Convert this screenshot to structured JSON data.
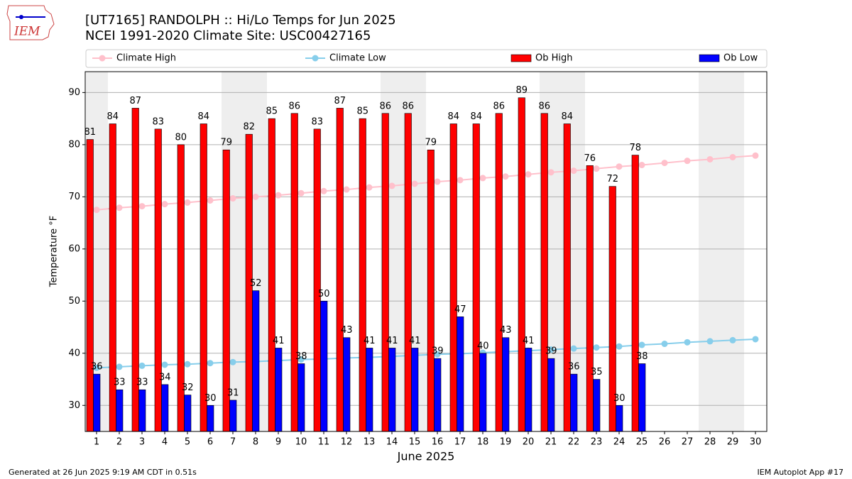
{
  "chart_data": {
    "type": "bar",
    "title": "[UT7165] RANDOLPH :: Hi/Lo Temps for Jun 2025",
    "subtitle": "NCEI 1991-2020 Climate Site: USC00427165",
    "logo_text": "IEM",
    "xlabel": "June 2025",
    "ylabel": "Temperature °F",
    "footer_left": "Generated at 26 Jun 2025 9:19 AM CDT in 0.51s",
    "footer_right": "IEM Autoplot App #17",
    "categories": [
      "1",
      "2",
      "3",
      "4",
      "5",
      "6",
      "7",
      "8",
      "9",
      "10",
      "11",
      "12",
      "13",
      "14",
      "15",
      "16",
      "17",
      "18",
      "19",
      "20",
      "21",
      "22",
      "23",
      "24",
      "25",
      "26",
      "27",
      "28",
      "29",
      "30"
    ],
    "shaded_categories": [
      "1",
      "7",
      "8",
      "14",
      "15",
      "21",
      "22",
      "28",
      "29"
    ],
    "ylim": [
      25,
      94
    ],
    "yticks": [
      30,
      40,
      50,
      60,
      70,
      80,
      90
    ],
    "grid": true,
    "series": [
      {
        "name": "Climate High",
        "type": "line",
        "color": "#ffc0cb",
        "values": [
          67.5,
          67.9,
          68.2,
          68.6,
          68.9,
          69.3,
          69.7,
          70.0,
          70.3,
          70.7,
          71.1,
          71.4,
          71.8,
          72.1,
          72.5,
          72.9,
          73.2,
          73.6,
          73.9,
          74.3,
          74.7,
          75.0,
          75.4,
          75.8,
          76.1,
          76.5,
          76.9,
          77.2,
          77.6,
          77.9
        ]
      },
      {
        "name": "Climate Low",
        "type": "line",
        "color": "#87ceeb",
        "values": [
          37.2,
          37.4,
          37.6,
          37.8,
          37.9,
          38.1,
          38.3,
          38.4,
          38.6,
          38.8,
          38.9,
          39.1,
          39.2,
          39.4,
          39.6,
          39.8,
          39.9,
          40.1,
          40.3,
          40.5,
          40.7,
          40.9,
          41.1,
          41.3,
          41.6,
          41.8,
          42.1,
          42.3,
          42.5,
          42.7
        ]
      },
      {
        "name": "Ob High",
        "type": "bar",
        "color": "#ff0000",
        "values": [
          81,
          84,
          87,
          83,
          80,
          84,
          79,
          82,
          85,
          86,
          83,
          87,
          85,
          86,
          86,
          79,
          84,
          84,
          86,
          89,
          86,
          84,
          76,
          72,
          78,
          null,
          null,
          null,
          null,
          null
        ]
      },
      {
        "name": "Ob Low",
        "type": "bar",
        "color": "#0000ff",
        "values": [
          36,
          33,
          33,
          34,
          32,
          30,
          31,
          52,
          41,
          38,
          50,
          43,
          41,
          41,
          41,
          39,
          47,
          40,
          43,
          41,
          39,
          36,
          35,
          30,
          38,
          null,
          null,
          null,
          null,
          null
        ]
      }
    ]
  }
}
